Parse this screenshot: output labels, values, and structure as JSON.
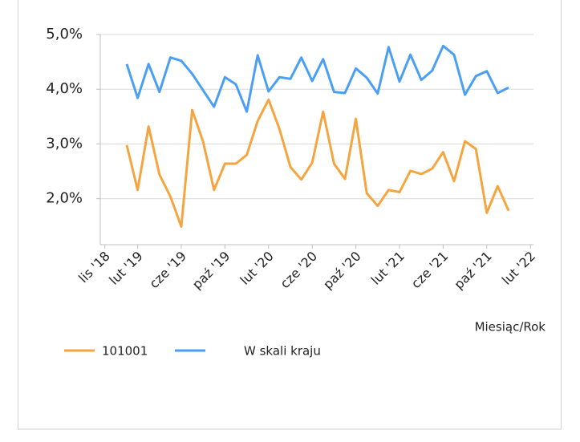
{
  "chart_data": {
    "type": "line",
    "x_axis_label": "Miesiąc/Rok",
    "x": [
      2,
      3,
      4,
      5,
      6,
      7,
      8,
      9,
      10,
      11,
      12,
      13,
      14,
      15,
      16,
      17,
      18,
      19,
      20,
      21,
      22,
      23,
      24,
      25,
      26,
      27,
      28,
      29,
      30,
      31,
      32,
      33,
      34,
      35,
      36,
      37
    ],
    "xlim": [
      0,
      39
    ],
    "xticks": [
      {
        "value": 0,
        "label": "lis '18"
      },
      {
        "value": 3,
        "label": "lut '19"
      },
      {
        "value": 7,
        "label": "cze '19"
      },
      {
        "value": 11,
        "label": "paź '19"
      },
      {
        "value": 15,
        "label": "lut '20"
      },
      {
        "value": 19,
        "label": "cze '20"
      },
      {
        "value": 23,
        "label": "paź '20"
      },
      {
        "value": 27,
        "label": "lut '21"
      },
      {
        "value": 31,
        "label": "cze '21"
      },
      {
        "value": 35,
        "label": "paź '21"
      },
      {
        "value": 39,
        "label": "lut '22"
      }
    ],
    "ylim": [
      1.16,
      5
    ],
    "yticks": [
      {
        "value": 2,
        "label": "2,0%"
      },
      {
        "value": 3,
        "label": "3,0%"
      },
      {
        "value": 4,
        "label": "4,0%"
      },
      {
        "value": 5,
        "label": "5,0%"
      }
    ],
    "grid": true,
    "legend": "bottom",
    "series": [
      {
        "name": "101001",
        "color": "#f5a53f",
        "values": [
          2.98,
          2.16,
          3.32,
          2.44,
          2.04,
          1.49,
          3.62,
          3.04,
          2.16,
          2.64,
          2.64,
          2.8,
          3.42,
          3.81,
          3.27,
          2.58,
          2.35,
          2.66,
          3.59,
          2.64,
          2.36,
          3.46,
          2.1,
          1.87,
          2.16,
          2.12,
          2.51,
          2.45,
          2.55,
          2.85,
          2.32,
          3.05,
          2.91,
          1.74,
          2.23,
          1.78
        ]
      },
      {
        "name": "W skali kraju",
        "color": "#4a9ff5",
        "values": [
          4.46,
          3.84,
          4.46,
          3.95,
          4.58,
          4.52,
          4.28,
          3.98,
          3.68,
          4.22,
          4.09,
          3.59,
          4.62,
          3.96,
          4.22,
          4.19,
          4.58,
          4.15,
          4.55,
          3.95,
          3.93,
          4.38,
          4.21,
          3.92,
          4.77,
          4.14,
          4.63,
          4.17,
          4.34,
          4.79,
          4.63,
          3.9,
          4.24,
          4.33,
          3.93,
          4.03
        ]
      }
    ]
  }
}
